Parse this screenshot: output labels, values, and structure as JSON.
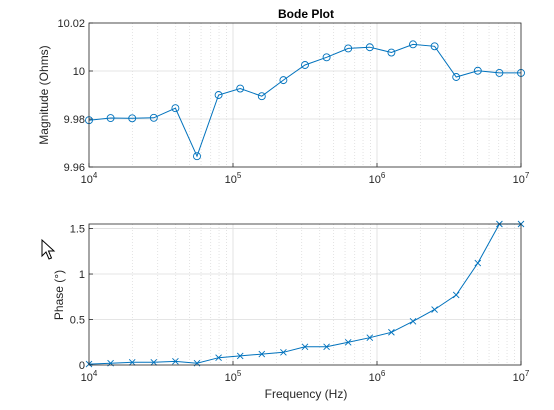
{
  "colors": {
    "series": "#0072BD",
    "grid": "#dcdcdc",
    "axis": "#262626",
    "background": "#ffffff"
  },
  "cursor_icon": "arrow-cursor-icon",
  "chart_data": [
    {
      "type": "line",
      "title": "Bode Plot",
      "xlabel": "",
      "ylabel": "Magnitude (Ohms)",
      "xscale": "log",
      "xlim": [
        10000,
        10000000
      ],
      "ylim": [
        9.96,
        10.02
      ],
      "xticks": [
        {
          "mantissa": "10",
          "exponent": "4"
        },
        {
          "mantissa": "10",
          "exponent": "5"
        },
        {
          "mantissa": "10",
          "exponent": "6"
        },
        {
          "mantissa": "10",
          "exponent": "7"
        }
      ],
      "yticks": [
        "9.96",
        "9.98",
        "10",
        "10.02"
      ],
      "grid": true,
      "marker": "circle",
      "series": [
        {
          "x": [
            10000,
            14125,
            19953,
            28184,
            39811,
            56234,
            79433,
            112202,
            158489,
            223872,
            316228,
            446684,
            630957,
            891251,
            1258925,
            1778279,
            2511886,
            3548134,
            5011872,
            7079458,
            10000000
          ],
          "y": [
            9.9795,
            9.9804,
            9.9803,
            9.9805,
            9.9845,
            9.9645,
            9.99,
            9.9927,
            9.9895,
            9.9962,
            10.0025,
            10.0057,
            10.0094,
            10.0099,
            10.0077,
            10.0111,
            10.0103,
            9.9975,
            10.0001,
            9.9992,
            9.9992
          ]
        }
      ]
    },
    {
      "type": "line",
      "title": "",
      "xlabel": "Frequency (Hz)",
      "ylabel": "Phase (°)",
      "xscale": "log",
      "xlim": [
        10000,
        10000000
      ],
      "ylim": [
        0,
        1.55
      ],
      "xticks": [
        {
          "mantissa": "10",
          "exponent": "4"
        },
        {
          "mantissa": "10",
          "exponent": "5"
        },
        {
          "mantissa": "10",
          "exponent": "6"
        },
        {
          "mantissa": "10",
          "exponent": "7"
        }
      ],
      "yticks": [
        "0",
        "0.5",
        "1",
        "1.5"
      ],
      "grid": true,
      "marker": "x",
      "series": [
        {
          "x": [
            10000,
            14125,
            19953,
            28184,
            39811,
            56234,
            79433,
            112202,
            158489,
            223872,
            316228,
            446684,
            630957,
            891251,
            1258925,
            1778279,
            2511886,
            3548134,
            5011872,
            7079458,
            10000000
          ],
          "y": [
            0.01,
            0.02,
            0.03,
            0.03,
            0.04,
            0.02,
            0.08,
            0.1,
            0.12,
            0.14,
            0.2,
            0.2,
            0.25,
            0.3,
            0.36,
            0.48,
            0.61,
            0.77,
            1.12,
            1.55,
            1.55
          ]
        }
      ]
    }
  ]
}
